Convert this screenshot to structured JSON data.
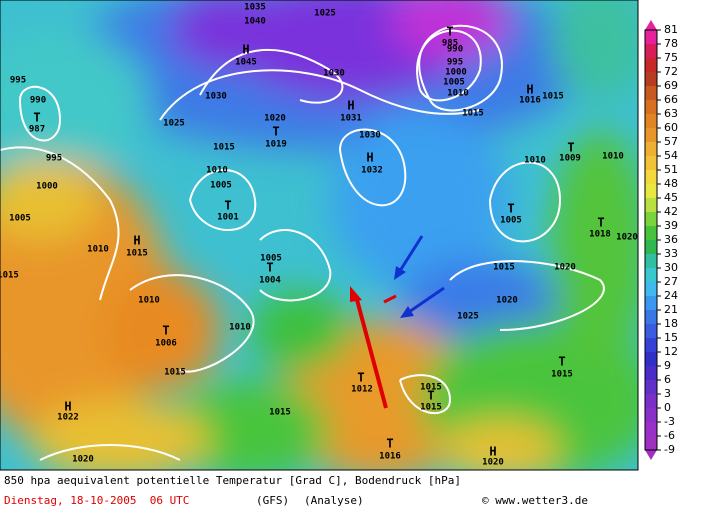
{
  "map_labels": [
    "1035",
    "1040",
    "1025",
    "H",
    "1045",
    "T",
    "985",
    "990",
    "995",
    "1000",
    "1005",
    "1010",
    "1030",
    "1030",
    "H",
    "1031",
    "H",
    "1016",
    "1015",
    "1015",
    "1025",
    "1020",
    "T",
    "1019",
    "1030",
    "995",
    "990",
    "T",
    "987",
    "995",
    "1015",
    "H",
    "1032",
    "1010",
    "T",
    "1009",
    "1010",
    "1010",
    "1005",
    "T",
    "1001",
    "1000",
    "1005",
    "T",
    "1005",
    "T",
    "1018",
    "1020",
    "1010",
    "H",
    "1015",
    "1005",
    "T",
    "1004",
    "1015",
    "1020",
    "1015",
    "1010",
    "1020",
    "1025",
    "T",
    "1006",
    "1010",
    "1015",
    "T",
    "1012",
    "1015",
    "T",
    "1015",
    "T",
    "1015",
    "H",
    "1022",
    "1015",
    "T",
    "1016",
    "H",
    "1020",
    "1020"
  ],
  "colorbar": {
    "ticks": [
      81,
      78,
      75,
      72,
      69,
      66,
      63,
      60,
      57,
      54,
      51,
      48,
      45,
      42,
      39,
      36,
      33,
      30,
      27,
      24,
      21,
      18,
      15,
      12,
      9,
      6,
      3,
      0,
      -3,
      -6,
      -9
    ]
  },
  "footer": {
    "title": "850 hpa aequivalent potentielle Temperatur [Grad C], Bodendruck [hPa]",
    "date": "Dienstag, 18-10-2005  06 UTC",
    "model": "(GFS)",
    "run": "(Analyse)",
    "source": "© www.wetter3.de"
  }
}
